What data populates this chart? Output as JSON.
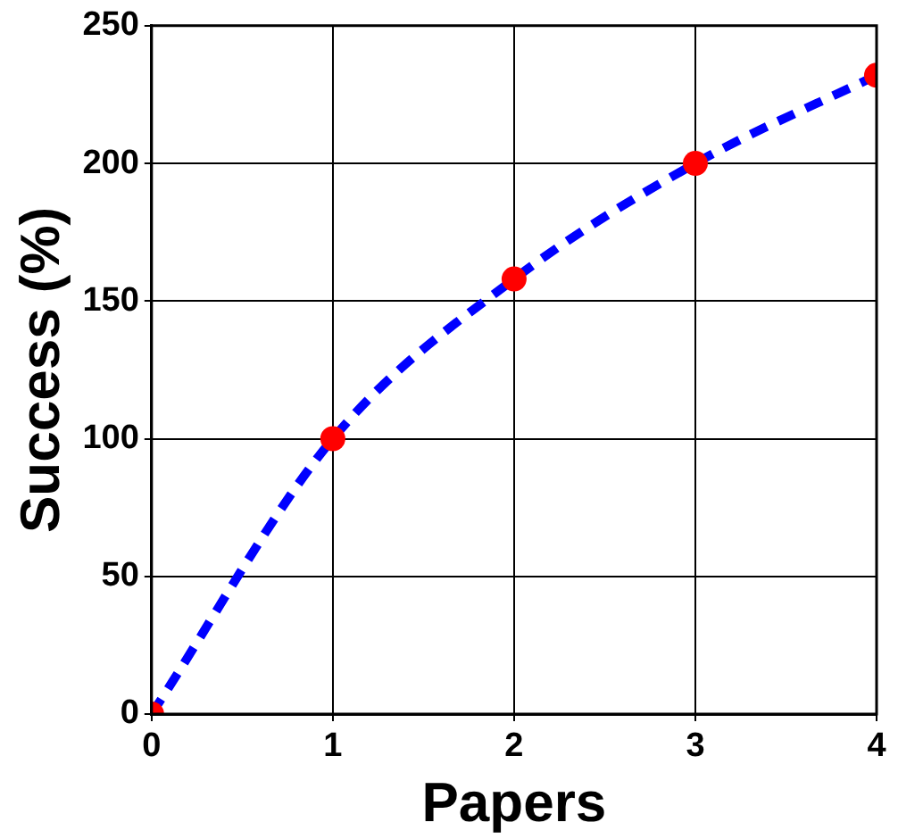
{
  "chart_data": {
    "type": "line",
    "xlabel": "Papers",
    "ylabel": "Success (%)",
    "x": [
      0,
      1,
      2,
      3,
      4
    ],
    "series": [
      {
        "type": "line",
        "color": "#0000ff",
        "values": [
          0,
          100,
          158,
          200,
          232
        ],
        "marker": "none",
        "line_style": "dashed"
      },
      {
        "type": "scatter",
        "color": "#ff0000",
        "values": [
          0,
          100,
          158,
          200,
          232
        ],
        "marker": "circle"
      }
    ],
    "xlim": [
      0,
      4
    ],
    "xticks": [
      0,
      1,
      2,
      3,
      4
    ],
    "ylim": [
      0,
      250
    ],
    "yticks": [
      0,
      50,
      100,
      150,
      200,
      250
    ],
    "grid": true,
    "legend": false
  }
}
